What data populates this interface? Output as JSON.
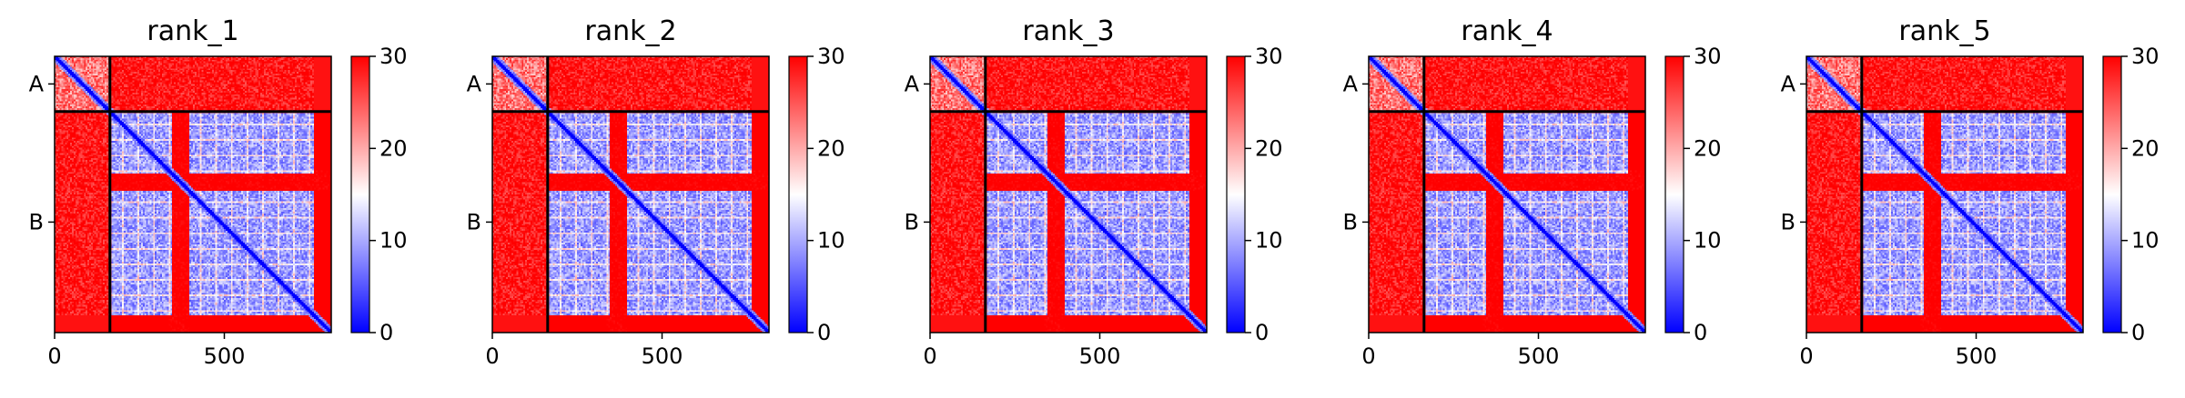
{
  "figure": {
    "colormap": [
      "#0000ff",
      "#ffffff",
      "#ff0000"
    ],
    "value_range": [
      0,
      30
    ]
  },
  "chart_data": [
    {
      "type": "heatmap",
      "title": "rank_1",
      "chain_labels": [
        "A",
        "B"
      ],
      "chain_boundaries": [
        0,
        163,
        815
      ],
      "xticks": [
        0,
        500
      ],
      "xlim": [
        0,
        815
      ],
      "colorbar_ticks": [
        0,
        10,
        20,
        30
      ]
    },
    {
      "type": "heatmap",
      "title": "rank_2",
      "chain_labels": [
        "A",
        "B"
      ],
      "chain_boundaries": [
        0,
        163,
        815
      ],
      "xticks": [
        0,
        500
      ],
      "xlim": [
        0,
        815
      ],
      "colorbar_ticks": [
        0,
        10,
        20,
        30
      ]
    },
    {
      "type": "heatmap",
      "title": "rank_3",
      "chain_labels": [
        "A",
        "B"
      ],
      "chain_boundaries": [
        0,
        163,
        815
      ],
      "xticks": [
        0,
        500
      ],
      "xlim": [
        0,
        815
      ],
      "colorbar_ticks": [
        0,
        10,
        20,
        30
      ]
    },
    {
      "type": "heatmap",
      "title": "rank_4",
      "chain_labels": [
        "A",
        "B"
      ],
      "chain_boundaries": [
        0,
        163,
        815
      ],
      "xticks": [
        0,
        500
      ],
      "xlim": [
        0,
        815
      ],
      "colorbar_ticks": [
        0,
        10,
        20,
        30
      ]
    },
    {
      "type": "heatmap",
      "title": "rank_5",
      "chain_labels": [
        "A",
        "B"
      ],
      "chain_boundaries": [
        0,
        163,
        815
      ],
      "xticks": [
        0,
        500
      ],
      "xlim": [
        0,
        815
      ],
      "colorbar_ticks": [
        0,
        10,
        20,
        30
      ]
    }
  ]
}
